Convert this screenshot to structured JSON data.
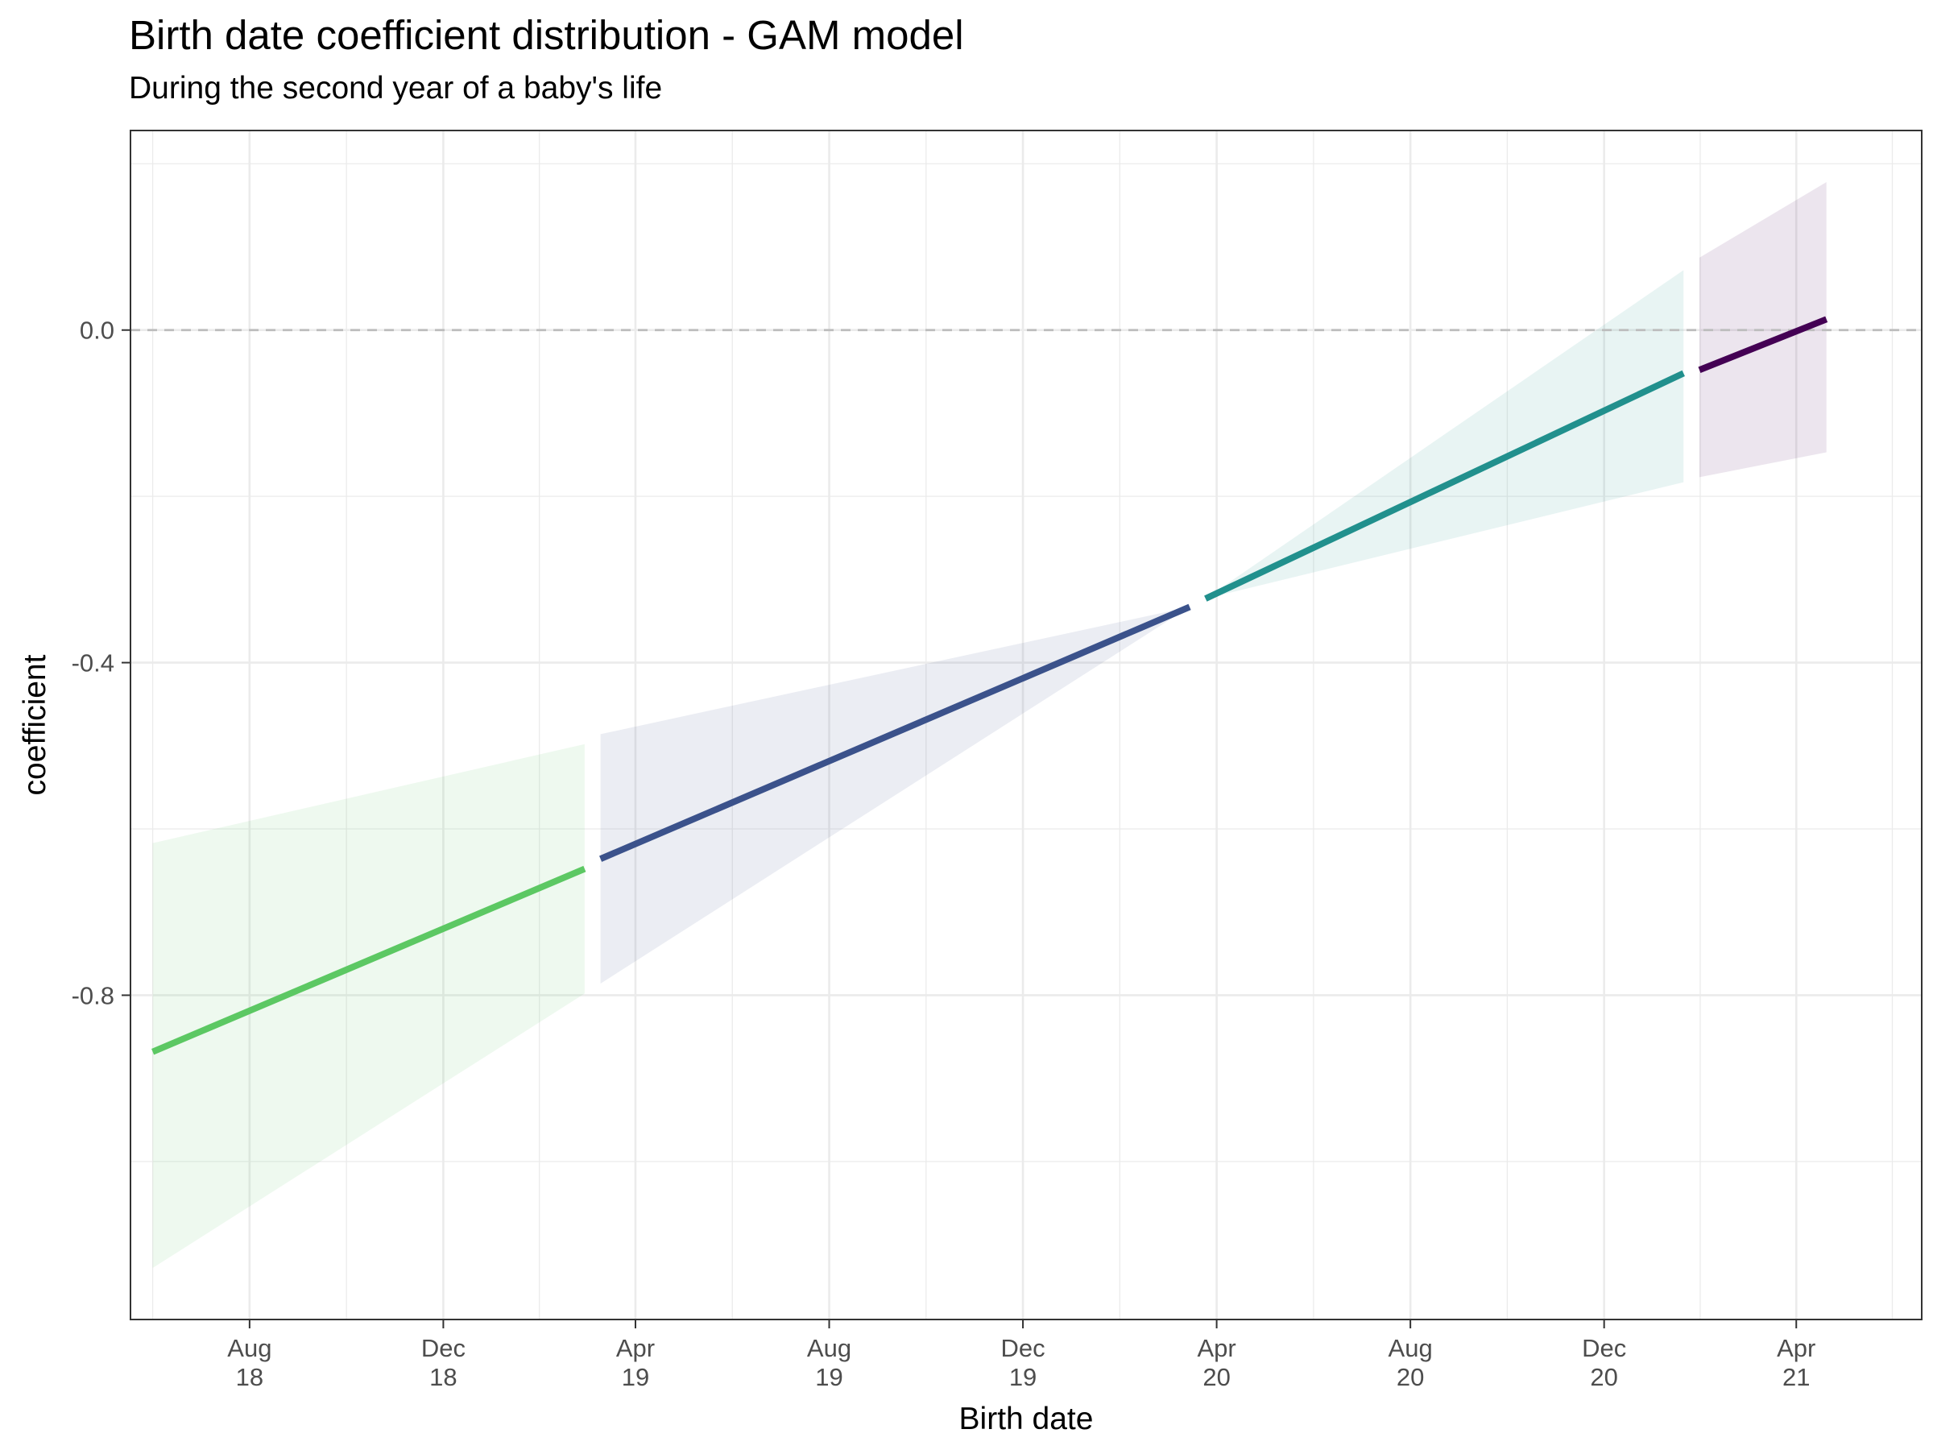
{
  "chart_data": {
    "type": "line",
    "title": "Birth date coefficient distribution - GAM model",
    "subtitle": "During the second year of a baby's life",
    "xlabel": "Birth date",
    "ylabel": "coefficient",
    "x_ticks": [
      {
        "date": "2018-08-01",
        "label": [
          "Aug",
          "18"
        ]
      },
      {
        "date": "2018-12-01",
        "label": [
          "Dec",
          "18"
        ]
      },
      {
        "date": "2019-04-01",
        "label": [
          "Apr",
          "19"
        ]
      },
      {
        "date": "2019-08-01",
        "label": [
          "Aug",
          "19"
        ]
      },
      {
        "date": "2019-12-01",
        "label": [
          "Dec",
          "19"
        ]
      },
      {
        "date": "2020-04-01",
        "label": [
          "Apr",
          "20"
        ]
      },
      {
        "date": "2020-08-01",
        "label": [
          "Aug",
          "20"
        ]
      },
      {
        "date": "2020-12-01",
        "label": [
          "Dec",
          "20"
        ]
      },
      {
        "date": "2021-04-01",
        "label": [
          "Apr",
          "21"
        ]
      }
    ],
    "y_ticks": [
      0.0,
      -0.4,
      -0.8
    ],
    "y_tick_labels": [
      "0.0",
      "-0.4",
      "-0.8"
    ],
    "xlim": [
      "2018-05-18",
      "2021-06-19"
    ],
    "ylim": [
      -1.19,
      0.24
    ],
    "reference_line": {
      "y": 0.0,
      "style": "dashed",
      "color": "#bdbdbd"
    },
    "grid": true,
    "legend": "none",
    "series": [
      {
        "color": "#5cc863",
        "points": [
          {
            "x": "2018-06-01",
            "y": -0.868,
            "lower": -1.128,
            "upper": -0.617
          },
          {
            "x": "2019-02-28",
            "y": -0.648,
            "lower": -0.798,
            "upper": -0.498
          }
        ]
      },
      {
        "color": "#3b528b",
        "points": [
          {
            "x": "2019-03-10",
            "y": -0.636,
            "lower": -0.786,
            "upper": -0.486
          },
          {
            "x": "2020-03-15",
            "y": -0.333,
            "lower": -0.333,
            "upper": -0.333
          }
        ]
      },
      {
        "color": "#21908d",
        "points": [
          {
            "x": "2020-03-25",
            "y": -0.323,
            "lower": -0.323,
            "upper": -0.323
          },
          {
            "x": "2021-01-20",
            "y": -0.052,
            "lower": -0.183,
            "upper": 0.072
          }
        ]
      },
      {
        "color": "#440154",
        "points": [
          {
            "x": "2021-01-30",
            "y": -0.048,
            "lower": -0.177,
            "upper": 0.087
          },
          {
            "x": "2021-04-20",
            "y": 0.013,
            "lower": -0.147,
            "upper": 0.178
          }
        ]
      }
    ]
  }
}
